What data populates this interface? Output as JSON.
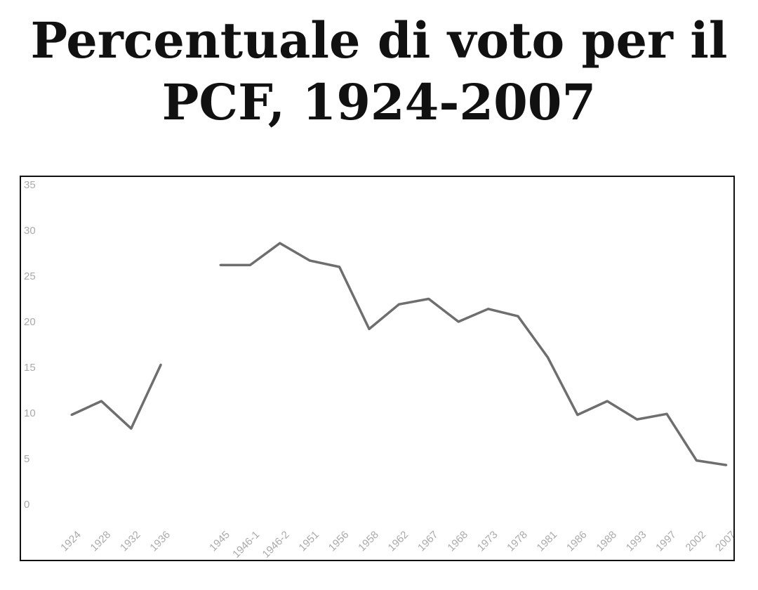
{
  "chart_data": {
    "type": "line",
    "title": "Percentuale di voto per il PCF, 1924-2007",
    "xlabel": "",
    "ylabel": "",
    "ylim": [
      0,
      35
    ],
    "yticks": [
      "0",
      "5",
      "10",
      "15",
      "20",
      "25",
      "30",
      "35"
    ],
    "categories": [
      "1924",
      "1928",
      "1932",
      "1936",
      "",
      "1945",
      "1946-1",
      "1946-2",
      "1951",
      "1956",
      "1958",
      "1962",
      "1967",
      "1968",
      "1973",
      "1978",
      "1981",
      "1986",
      "1988",
      "1993",
      "1997",
      "2002",
      "2007"
    ],
    "series": [
      {
        "values": [
          9.8,
          11.3,
          8.3,
          15.3,
          null,
          26.2,
          26.2,
          28.6,
          26.7,
          26.0,
          19.2,
          21.9,
          22.5,
          20.0,
          21.4,
          20.6,
          16.1,
          9.8,
          11.3,
          9.3,
          9.9,
          4.8,
          4.3
        ],
        "color": "#6e6e6e"
      }
    ],
    "grid": false,
    "legend": "none"
  }
}
